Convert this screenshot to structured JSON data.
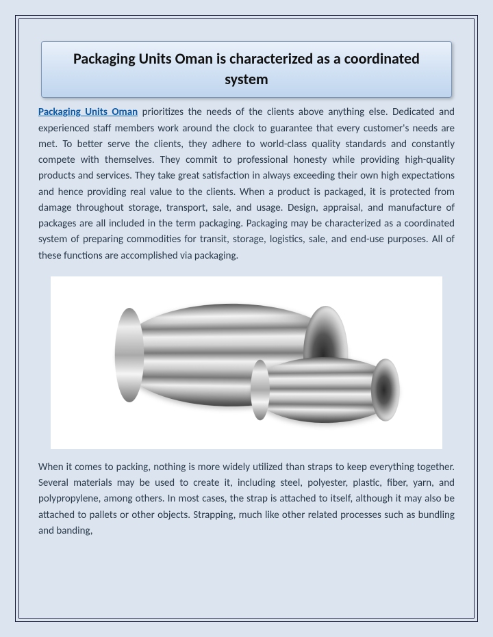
{
  "title": "Packaging Units Oman is characterized as a coordinated system",
  "link_text": "Packaging Units Oman",
  "paragraph1_rest": " prioritizes the needs of the clients above anything else. Dedicated and experienced staff members work around the clock to guarantee that every customer's needs are met. To better serve the clients, they adhere to world-class quality standards and constantly compete with themselves. They commit to professional honesty while providing high-quality products and services. They take great satisfaction in always exceeding their own high expectations and hence providing real value to the clients. When a product is packaged, it is protected from damage throughout storage, transport, sale, and usage. Design, appraisal, and manufacture of packages are all included in the term packaging. Packaging may be characterized as a coordinated system of preparing commodities for transit, storage, logistics, sale, and end-use purposes. All of these functions are accomplished via packaging.",
  "paragraph2": "When it comes to packing, nothing is more widely utilized than straps to keep everything together. Several materials may be used to create it, including steel, polyester, plastic, fiber, yarn, and polypropylene, among others. In most cases, the strap is attached to itself, although it may also be attached to pallets or other objects. Strapping, much like other related processes such as bundling and banding,",
  "colors": {
    "page_bg": "#dbe4ef",
    "border": "#1a1a3a",
    "title_grad_top": "#eaf1fa",
    "title_grad_bottom": "#bfd5ee",
    "body_text": "#2a3a4a",
    "link": "#0b5aa8"
  },
  "typography": {
    "title_fontsize": 22,
    "title_weight": 700,
    "body_fontsize": 15,
    "body_lineheight": 1.55,
    "font_family": "Calibri"
  },
  "image": {
    "description": "Two metallic spiral-wound tubes, silver/chrome finish, on white background",
    "bg": "#ffffff"
  }
}
